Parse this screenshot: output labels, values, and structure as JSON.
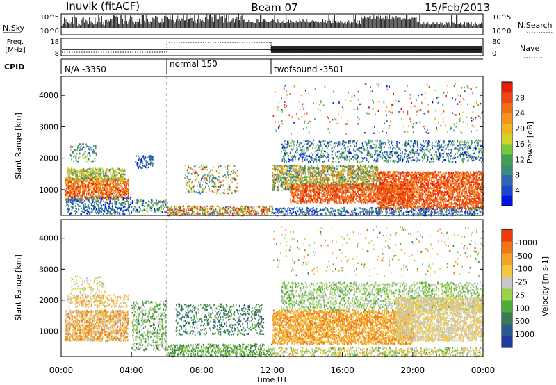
{
  "header": {
    "station": "Inuvik (fitACF)",
    "beam": "Beam 07",
    "date": "15/Feb/2013"
  },
  "top_panel": {
    "left_label": "N.Sky",
    "left_ticks": [
      "10^5",
      "10^0"
    ],
    "right_ticks": [
      "10^5",
      "10^0"
    ],
    "right_label": "N.Search"
  },
  "freq_panel": {
    "label_line1": "Freq.",
    "label_line2": "[MHz]",
    "left_ticks": [
      "18",
      "8"
    ],
    "right_ticks": [
      "80",
      "0"
    ],
    "right_label": "Nave"
  },
  "cpid": {
    "label": "CPID",
    "segments": [
      {
        "start": "00:00",
        "end": "06:00",
        "label": "N/A -3350"
      },
      {
        "start": "06:00",
        "end": "12:00",
        "label": "normal 150"
      },
      {
        "start": "12:00",
        "end": "24:00",
        "label": "twofsound -3501"
      }
    ]
  },
  "x_axis": {
    "title": "Time UT",
    "ticks": [
      "00:00",
      "04:00",
      "08:00",
      "12:00",
      "16:00",
      "20:00",
      "00:00"
    ]
  },
  "chart_data": [
    {
      "type": "heatmap",
      "name": "power",
      "ylabel": "Slant Range [km]",
      "ylim": [
        180,
        4600
      ],
      "yticks": [
        1000,
        2000,
        3000,
        4000
      ],
      "xlim_hours": [
        0,
        24
      ],
      "colorbar": {
        "label": "Power [dB]",
        "ticks": [
          "4",
          "8",
          "12",
          "16",
          "20",
          "24",
          "28"
        ],
        "colors": [
          "#0014e6",
          "#1e46c8",
          "#2f66b4",
          "#3c8c7a",
          "#41a050",
          "#7ac83c",
          "#d2d228",
          "#f0b41e",
          "#f5911e",
          "#f06e14",
          "#eb4614",
          "#e61e0a"
        ]
      }
    },
    {
      "type": "heatmap",
      "name": "velocity",
      "ylabel": "Slant Range [km]",
      "ylim": [
        180,
        4600
      ],
      "yticks": [
        1000,
        2000,
        3000,
        4000
      ],
      "xlim_hours": [
        0,
        24
      ],
      "colorbar": {
        "label": "Velocity [m s-1]",
        "ticks": [
          "1000",
          "500",
          "100",
          "25",
          "-25",
          "-100",
          "-500",
          "-1000"
        ],
        "colors": [
          "#1e3ca0",
          "#2d5a8c",
          "#3c7850",
          "#50aa3c",
          "#9ad24b",
          "#c8c8c8",
          "#f0c83c",
          "#f5a028",
          "#f07814",
          "#eb3c0a"
        ]
      }
    }
  ],
  "colors": {
    "background": "#ffffff",
    "axis": "#000000",
    "gridline_dash": "#aaaaaa"
  }
}
